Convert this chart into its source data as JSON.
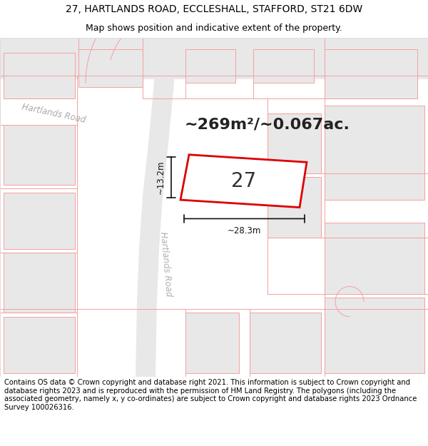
{
  "title_line1": "27, HARTLANDS ROAD, ECCLESHALL, STAFFORD, ST21 6DW",
  "title_line2": "Map shows position and indicative extent of the property.",
  "area_text": "~269m²/~0.067ac.",
  "plot_number": "27",
  "dim_width": "~28.3m",
  "dim_height": "~13.2m",
  "road_label1": "Hartlands Road",
  "road_label2": "Hartlands Road",
  "footer_text": "Contains OS data © Crown copyright and database right 2021. This information is subject to Crown copyright and database rights 2023 and is reproduced with the permission of HM Land Registry. The polygons (including the associated geometry, namely x, y co-ordinates) are subject to Crown copyright and database rights 2023 Ordnance Survey 100026316.",
  "map_bg": "#ffffff",
  "block_fill": "#e8e8e8",
  "block_edge": "#cccccc",
  "road_fill": "#e0e0e0",
  "boundary_color": "#f4a0a0",
  "plot_edge": "#dd0000",
  "dim_color": "#111111",
  "road_label_color": "#aaaaaa",
  "title_fontsize": 10,
  "subtitle_fontsize": 9,
  "area_fontsize": 16,
  "plot_num_fontsize": 20,
  "dim_fontsize": 8.5,
  "road_label_fontsize": 8.5,
  "footer_fontsize": 7.2
}
